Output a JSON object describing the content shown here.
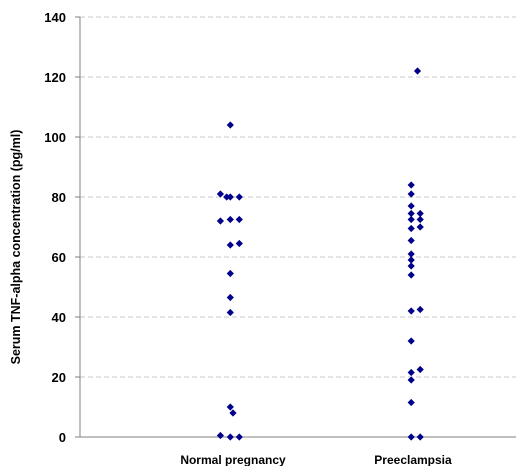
{
  "chart_data": {
    "type": "scatter",
    "title": "",
    "xlabel": "",
    "ylabel": "Serum TNF-alpha concentration (pg/ml)",
    "ylim": [
      0,
      140
    ],
    "yticks": [
      0,
      20,
      40,
      60,
      80,
      100,
      120,
      140
    ],
    "categories": [
      "Normal pregnancy",
      "Preeclampsia"
    ],
    "grid": true,
    "marker_color": "#00008B",
    "marker_shape": "diamond",
    "series": [
      {
        "category": "Normal pregnancy",
        "points": [
          {
            "x": -0.14,
            "y": 81
          },
          {
            "x": -0.07,
            "y": 80
          },
          {
            "x": 0.07,
            "y": 80
          },
          {
            "x": -0.03,
            "y": 80
          },
          {
            "x": -0.14,
            "y": 72
          },
          {
            "x": -0.03,
            "y": 72.5
          },
          {
            "x": 0.07,
            "y": 72.5
          },
          {
            "x": -0.03,
            "y": 64
          },
          {
            "x": 0.07,
            "y": 64.5
          },
          {
            "x": -0.03,
            "y": 54.5
          },
          {
            "x": -0.03,
            "y": 46.5
          },
          {
            "x": -0.03,
            "y": 41.5
          },
          {
            "x": -0.03,
            "y": 104
          },
          {
            "x": -0.03,
            "y": 10
          },
          {
            "x": 0.0,
            "y": 8
          },
          {
            "x": -0.14,
            "y": 0.5
          },
          {
            "x": -0.03,
            "y": 0
          },
          {
            "x": 0.07,
            "y": 0
          }
        ]
      },
      {
        "category": "Preeclampsia",
        "points": [
          {
            "x": 0.05,
            "y": 122
          },
          {
            "x": -0.02,
            "y": 84
          },
          {
            "x": -0.02,
            "y": 81
          },
          {
            "x": -0.02,
            "y": 77
          },
          {
            "x": -0.02,
            "y": 74.5
          },
          {
            "x": 0.08,
            "y": 74.5
          },
          {
            "x": -0.02,
            "y": 72.5
          },
          {
            "x": 0.08,
            "y": 72.5
          },
          {
            "x": -0.02,
            "y": 69.5
          },
          {
            "x": 0.08,
            "y": 70
          },
          {
            "x": -0.02,
            "y": 65.5
          },
          {
            "x": -0.02,
            "y": 61
          },
          {
            "x": -0.02,
            "y": 59
          },
          {
            "x": -0.02,
            "y": 57
          },
          {
            "x": -0.02,
            "y": 54
          },
          {
            "x": -0.02,
            "y": 42
          },
          {
            "x": 0.08,
            "y": 42.5
          },
          {
            "x": -0.02,
            "y": 32
          },
          {
            "x": 0.08,
            "y": 22.5
          },
          {
            "x": -0.02,
            "y": 21.5
          },
          {
            "x": -0.02,
            "y": 19
          },
          {
            "x": -0.02,
            "y": 11.5
          },
          {
            "x": -0.02,
            "y": 0
          },
          {
            "x": 0.08,
            "y": 0
          }
        ]
      }
    ]
  }
}
